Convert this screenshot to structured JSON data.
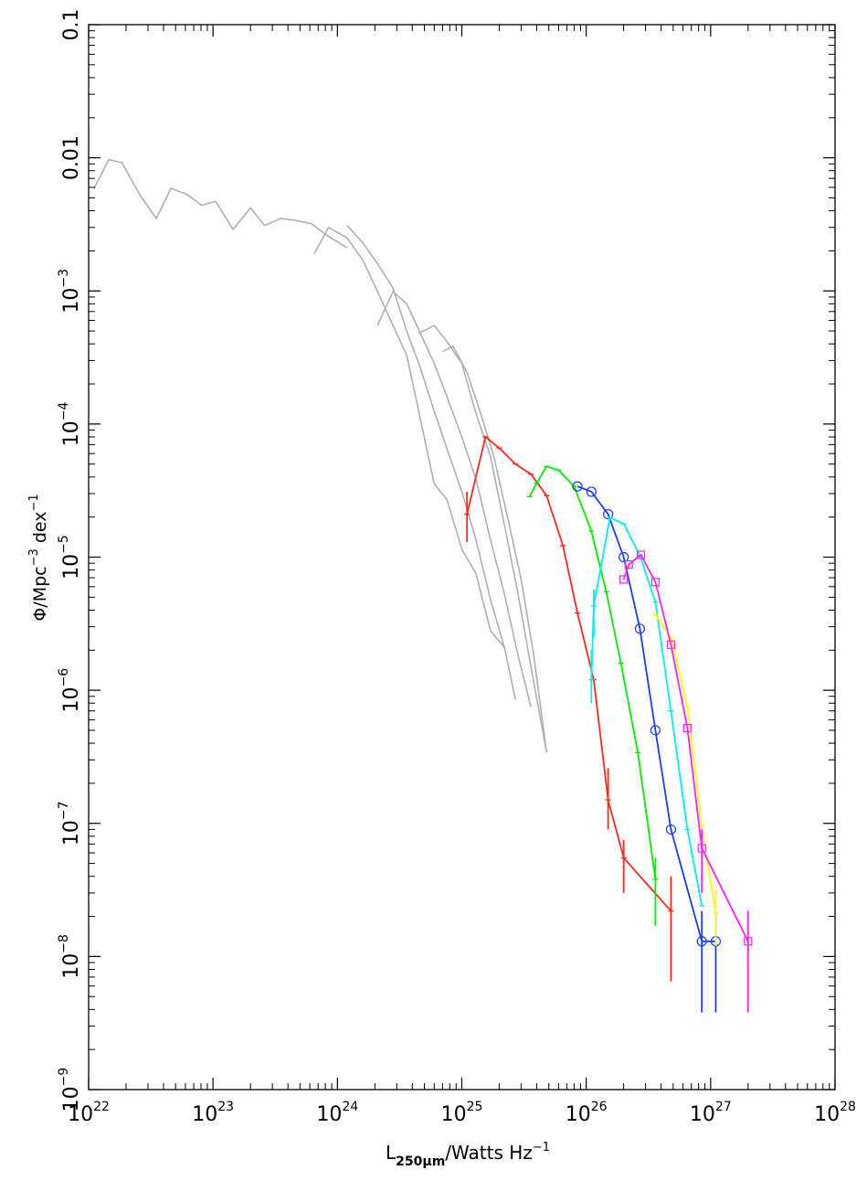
{
  "chart_data": {
    "type": "line",
    "xscale": "log",
    "yscale": "log",
    "xlim": [
      1e+22,
      1e+28
    ],
    "ylim": [
      1e-09,
      0.1
    ],
    "xlabel": {
      "base": "L",
      "sub": "250μm",
      "rest": "/Watts Hz",
      "sup": "−1"
    },
    "ylabel": {
      "phi": "Φ",
      "mid": "/Mpc",
      "sup1": "−3",
      "mid2": " dex",
      "sup2": "−1"
    },
    "x_ticks": [
      {
        "value": 1e+22,
        "base": "10",
        "exp": "22"
      },
      {
        "value": 1e+23,
        "base": "10",
        "exp": "23"
      },
      {
        "value": 1e+24,
        "base": "10",
        "exp": "24"
      },
      {
        "value": 1e+25,
        "base": "10",
        "exp": "25"
      },
      {
        "value": 1e+26,
        "base": "10",
        "exp": "26"
      },
      {
        "value": 1e+27,
        "base": "10",
        "exp": "27"
      },
      {
        "value": 1e+28,
        "base": "10",
        "exp": "28"
      }
    ],
    "y_ticks": [
      {
        "value": 1e-09,
        "base": "10",
        "exp": "−9"
      },
      {
        "value": 1e-08,
        "base": "10",
        "exp": "−8"
      },
      {
        "value": 1e-07,
        "base": "10",
        "exp": "−7"
      },
      {
        "value": 1e-06,
        "base": "10",
        "exp": "−6"
      },
      {
        "value": 1e-05,
        "base": "10",
        "exp": "−5"
      },
      {
        "value": 0.0001,
        "base": "10",
        "exp": "−4"
      },
      {
        "value": 0.001,
        "base": "10",
        "exp": "−3"
      },
      {
        "value": 0.01,
        "base": "0.01",
        "exp": ""
      },
      {
        "value": 0.1,
        "base": "0.1",
        "exp": ""
      }
    ],
    "grey_series": [
      {
        "color": "#b0b0b0",
        "x": [
          1.1e+22,
          1.45e+22,
          1.85e+22,
          2.6e+22,
          3.5e+22,
          4.6e+22,
          6.2e+22,
          8.1e+22,
          1.05e+23,
          1.45e+23,
          2e+23,
          2.6e+23,
          3.5e+23,
          4.5e+23,
          6.2e+23,
          8.3e+23,
          1.2e+24
        ],
        "y": [
          0.0058,
          0.0097,
          0.0092,
          0.0052,
          0.0035,
          0.0059,
          0.0053,
          0.0044,
          0.0047,
          0.0029,
          0.0042,
          0.0031,
          0.0035,
          0.0034,
          0.0032,
          0.0026,
          0.0021
        ]
      },
      {
        "color": "#b0b0b0",
        "x": [
          6.5e+23,
          8.5e+23,
          1.2e+24,
          1.6e+24,
          2.1e+24,
          2.8e+24,
          3.6e+24,
          4.5e+24,
          6e+24,
          7.6e+24,
          1e+25,
          1.3e+25,
          1.7e+25,
          2.2e+25
        ],
        "y": [
          0.0019,
          0.003,
          0.0025,
          0.0017,
          0.00099,
          0.00055,
          0.00033,
          0.000125,
          3.55e-05,
          2.7e-05,
          1.15e-05,
          7.5e-06,
          2.8e-06,
          2.1e-06
        ]
      },
      {
        "color": "#b0b0b0",
        "x": [
          1.2e+24,
          1.6e+24,
          2.1e+24,
          2.8e+24,
          3.6e+24,
          4.6e+24,
          6e+24,
          7.6e+24,
          1e+25,
          1.3e+25,
          1.7e+25,
          2.2e+25,
          2.7e+25
        ],
        "y": [
          0.0031,
          0.0023,
          0.0016,
          0.00105,
          0.0005,
          0.00027,
          0.000125,
          6.5e-05,
          3.1e-05,
          1.35e-05,
          4.8e-06,
          2.1e-06,
          8.5e-07
        ]
      },
      {
        "color": "#b0b0b0",
        "x": [
          2.1e+24,
          2.8e+24,
          3.6e+24,
          4.6e+24,
          6e+24,
          7.6e+24,
          1e+25,
          1.3e+25,
          1.7e+25,
          2.2e+25,
          2.8e+25,
          3.6e+25
        ],
        "y": [
          0.00055,
          0.00099,
          0.0008,
          0.00049,
          0.000285,
          0.00016,
          8e-05,
          3.85e-05,
          1.35e-05,
          5.3e-06,
          1.9e-06,
          7.5e-07
        ]
      },
      {
        "color": "#b0b0b0",
        "x": [
          4.5e+24,
          6e+24,
          7.6e+24,
          1e+25,
          1.3e+25,
          1.7e+25,
          2.2e+25,
          2.8e+25,
          3.6e+25,
          4.8e+25
        ],
        "y": [
          0.00048,
          0.00055,
          0.000415,
          0.000285,
          0.00012,
          5.7e-05,
          1.75e-05,
          5.6e-06,
          1.5e-06,
          3.4e-07
        ]
      },
      {
        "color": "#b0b0b0",
        "x": [
          7e+24,
          8.5e+24,
          1.1e+25,
          1.4e+25,
          1.8e+25,
          2.3e+25,
          3e+25,
          3.8e+25,
          4.8e+25
        ],
        "y": [
          0.00035,
          0.000385,
          0.000245,
          0.000125,
          5.8e-05,
          2.1e-05,
          6.8e-06,
          1.8e-06,
          3.4e-07
        ]
      }
    ],
    "series": [
      {
        "color": "#ff2a1a",
        "marker": "cross",
        "x": [
          1.1e+25,
          1.55e+25,
          2e+25,
          2.7e+25,
          3.6e+25,
          4.8e+25,
          6.5e+25,
          8.5e+25,
          1.15e+26,
          1.5e+26,
          2e+26,
          4.8e+26
        ],
        "y": [
          2.1e-05,
          8e-05,
          6.6e-05,
          5e-05,
          4.2e-05,
          2.9e-05,
          1.22e-05,
          3.8e-06,
          1.2e-06,
          1.5e-07,
          5.5e-08,
          2.2e-08
        ],
        "err": [
          [
            1.3e-05,
            3.1e-05
          ],
          null,
          null,
          null,
          null,
          null,
          null,
          null,
          null,
          [
            9e-08,
            2.6e-07
          ],
          [
            3e-08,
            7.5e-08
          ],
          [
            6.5e-09,
            4e-08
          ]
        ]
      },
      {
        "color": "#00ee00",
        "marker": "cross",
        "x": [
          3.5e+25,
          4e+25,
          4.8e+25,
          6e+25,
          8e+25,
          1.1e+26,
          1.45e+26,
          1.9e+26,
          2.6e+26,
          3.6e+26
        ],
        "y": [
          2.85e-05,
          3.6e-05,
          4.8e-05,
          4.5e-05,
          3.4e-05,
          1.57e-05,
          5.5e-06,
          1.6e-06,
          3.4e-07,
          3.8e-08
        ],
        "err": [
          null,
          null,
          null,
          null,
          null,
          null,
          null,
          null,
          null,
          [
            1.7e-08,
            5.5e-08
          ]
        ]
      },
      {
        "color": "#1a3cff",
        "marker": "circle",
        "x": [
          8.5e+25,
          1.1e+26,
          1.5e+26,
          2e+26,
          2.7e+26,
          3.6e+26,
          4.8e+26,
          8.5e+26,
          1.1e+27
        ],
        "y": [
          3.4e-05,
          3.1e-05,
          2.1e-05,
          1e-05,
          2.9e-06,
          5e-07,
          9e-08,
          1.3e-08,
          1.3e-08
        ],
        "err": [
          null,
          null,
          null,
          null,
          null,
          null,
          null,
          [
            3.8e-09,
            2.2e-08
          ],
          [
            3.8e-09,
            2.2e-08
          ]
        ]
      },
      {
        "color": "#00eeee",
        "marker": "cross",
        "x": [
          1.1e+26,
          1.15e+26,
          1.55e+26,
          2e+26,
          2.7e+26,
          3.6e+26,
          4.8e+26,
          6.5e+26,
          8.5e+26
        ],
        "y": [
          1.2e-06,
          4.3e-06,
          1.98e-05,
          1.78e-05,
          1.03e-05,
          4.6e-06,
          7e-07,
          9e-08,
          2.4e-08
        ],
        "err": [
          [
            8e-07,
            2e-06
          ],
          [
            2.5e-06,
            5.7e-06
          ],
          null,
          null,
          null,
          null,
          null,
          null,
          null
        ]
      },
      {
        "color": "#ffff00",
        "marker": "cross",
        "x": [
          3.6e+26,
          4.8e+26,
          6.5e+26,
          8.5e+26,
          1.1e+27
        ],
        "y": [
          3.7e-06,
          2.5e-06,
          7.5e-07,
          9.5e-08,
          2.1e-08
        ],
        "err": [
          null,
          null,
          null,
          null,
          [
            1.2e-08,
            3.2e-08
          ]
        ]
      },
      {
        "color": "#ff22ff",
        "marker": "square",
        "x": [
          2e+26,
          2.2e+26,
          2.75e+26,
          3.6e+26,
          4.8e+26,
          6.5e+26,
          8.5e+26,
          2e+27
        ],
        "y": [
          6.8e-06,
          8.8e-06,
          1.04e-05,
          6.5e-06,
          2.2e-06,
          5.2e-07,
          6.5e-08,
          1.3e-08
        ],
        "err": [
          null,
          null,
          null,
          null,
          null,
          null,
          [
            3e-08,
            9e-08
          ],
          [
            3.8e-09,
            2.2e-08
          ]
        ]
      }
    ]
  }
}
